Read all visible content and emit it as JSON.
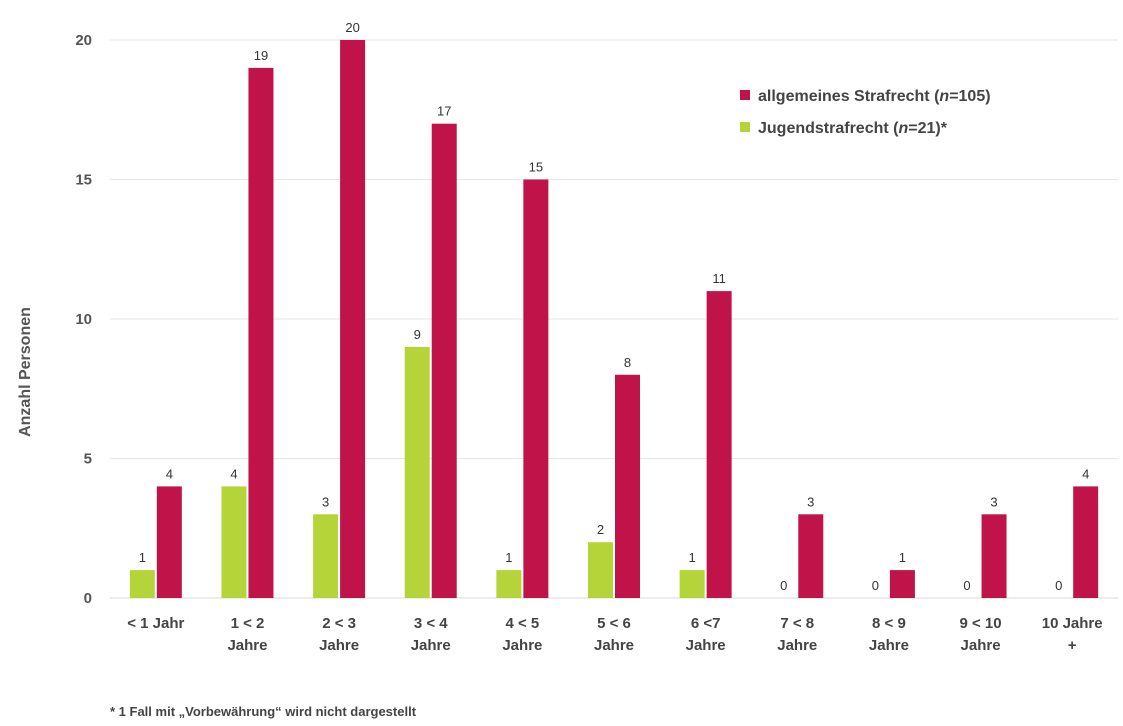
{
  "chart_data": {
    "type": "bar",
    "ylabel": "Anzahl Personen",
    "ylim": [
      0,
      20
    ],
    "yticks": [
      0,
      5,
      10,
      15,
      20
    ],
    "grid": true,
    "legend_position": "top-right",
    "categories": [
      [
        "< 1 Jahr"
      ],
      [
        "1 <  2",
        "Jahre"
      ],
      [
        "2 < 3",
        "Jahre"
      ],
      [
        "3 < 4",
        "Jahre"
      ],
      [
        "4 < 5",
        "Jahre"
      ],
      [
        "5 < 6",
        "Jahre"
      ],
      [
        "6 <7",
        "Jahre"
      ],
      [
        "7 < 8",
        "Jahre"
      ],
      [
        "8 < 9",
        "Jahre"
      ],
      [
        "9 < 10",
        "Jahre"
      ],
      [
        "10 Jahre",
        "+"
      ]
    ],
    "series": [
      {
        "name": "Jugendstrafrecht (n=21)*",
        "legend_parts": [
          "Jugendstrafrecht (",
          "n",
          "=21)*"
        ],
        "color": "#b5d43a",
        "values": [
          1,
          4,
          3,
          9,
          1,
          2,
          1,
          0,
          0,
          0,
          0
        ]
      },
      {
        "name": "allgemeines Strafrecht (n=105)",
        "legend_parts": [
          "allgemeines Strafrecht (",
          "n",
          "=105)"
        ],
        "color": "#c0134a",
        "values": [
          4,
          19,
          20,
          17,
          15,
          8,
          11,
          3,
          1,
          3,
          4
        ]
      }
    ],
    "footnote": "* 1 Fall mit „Vorbewährung“ wird nicht dargestellt"
  }
}
